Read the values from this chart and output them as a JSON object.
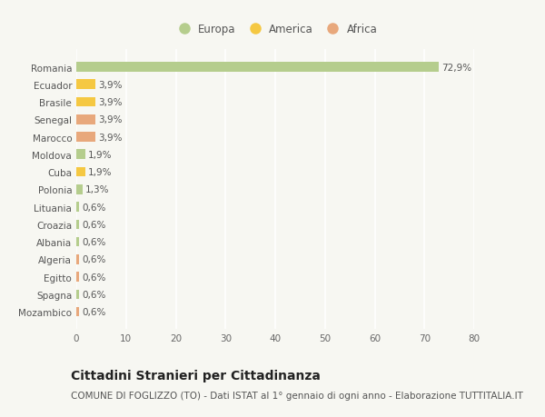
{
  "countries": [
    "Mozambico",
    "Spagna",
    "Egitto",
    "Algeria",
    "Albania",
    "Croazia",
    "Lituania",
    "Polonia",
    "Cuba",
    "Moldova",
    "Marocco",
    "Senegal",
    "Brasile",
    "Ecuador",
    "Romania"
  ],
  "values": [
    0.6,
    0.6,
    0.6,
    0.6,
    0.6,
    0.6,
    0.6,
    1.3,
    1.9,
    1.9,
    3.9,
    3.9,
    3.9,
    3.9,
    72.9
  ],
  "labels": [
    "0,6%",
    "0,6%",
    "0,6%",
    "0,6%",
    "0,6%",
    "0,6%",
    "0,6%",
    "1,3%",
    "1,9%",
    "1,9%",
    "3,9%",
    "3,9%",
    "3,9%",
    "3,9%",
    "72,9%"
  ],
  "colors": [
    "#e8a87c",
    "#b5cd8d",
    "#e8a87c",
    "#e8a87c",
    "#b5cd8d",
    "#b5cd8d",
    "#b5cd8d",
    "#b5cd8d",
    "#f5c842",
    "#b5cd8d",
    "#e8a87c",
    "#e8a87c",
    "#f5c842",
    "#f5c842",
    "#b5cd8d"
  ],
  "legend": [
    {
      "label": "Europa",
      "color": "#b5cd8d"
    },
    {
      "label": "America",
      "color": "#f5c842"
    },
    {
      "label": "Africa",
      "color": "#e8a87c"
    }
  ],
  "title": "Cittadini Stranieri per Cittadinanza",
  "subtitle": "COMUNE DI FOGLIZZO (TO) - Dati ISTAT al 1° gennaio di ogni anno - Elaborazione TUTTITALIA.IT",
  "xlim": [
    0,
    80
  ],
  "xticks": [
    0,
    10,
    20,
    30,
    40,
    50,
    60,
    70,
    80
  ],
  "background_color": "#f7f7f2",
  "bar_height": 0.55,
  "title_fontsize": 10,
  "subtitle_fontsize": 7.5,
  "label_fontsize": 7.5,
  "tick_fontsize": 7.5,
  "legend_fontsize": 8.5
}
